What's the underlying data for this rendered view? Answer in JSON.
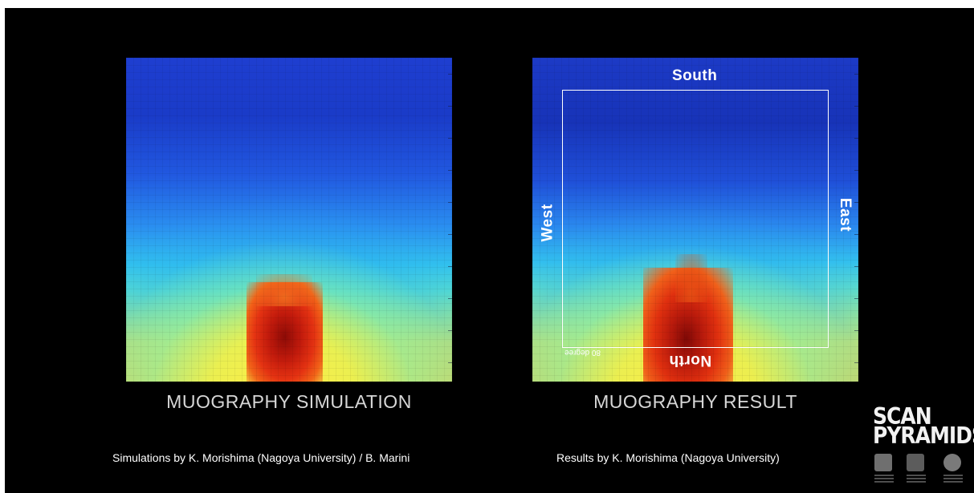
{
  "left_panel": {
    "caption": "MUOGRAPHY SIMULATION",
    "credit": "Simulations by K. Morishima (Nagoya University) / B. Marini"
  },
  "right_panel": {
    "caption": "MUOGRAPHY RESULT",
    "credit": "Results by K. Morishima (Nagoya University)",
    "labels": {
      "south": "South",
      "west": "West",
      "east": "East",
      "north": "North",
      "degree": "80 degree"
    }
  },
  "logo": {
    "line1": "SCAN",
    "line2": "PYRAMIDS"
  },
  "colors": {
    "background": "#000000",
    "heat_blue": "#1a3bc8",
    "heat_cyan": "#32c2ee",
    "heat_yellow": "#f2e84a",
    "heat_red": "#e02a10",
    "frame": "#ffffff"
  }
}
